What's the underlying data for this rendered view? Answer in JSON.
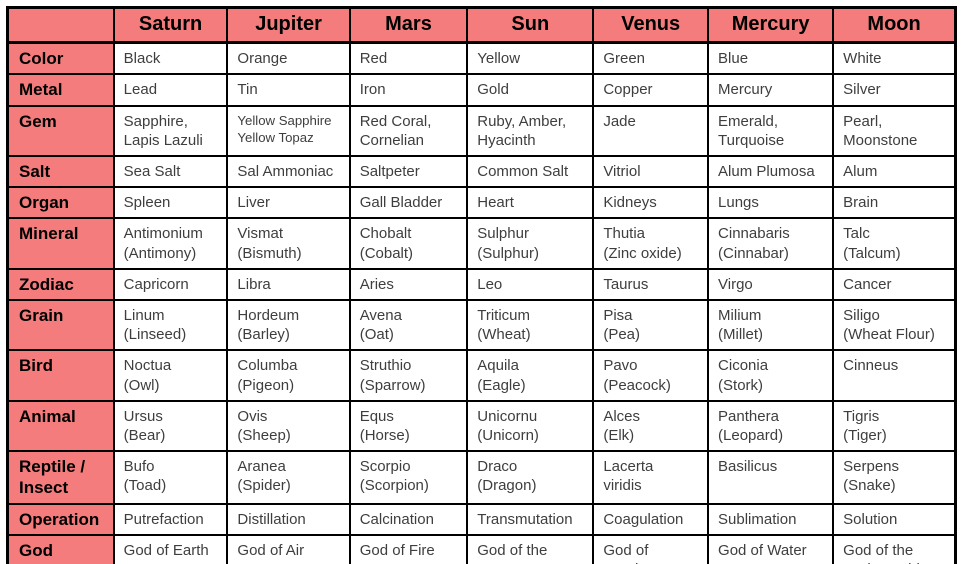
{
  "colors": {
    "header_bg": "#f47c7c",
    "border_color": "#000000",
    "cell_text": "#3e3e3e",
    "label_text": "#000000",
    "table_bg": "#ffffff"
  },
  "table": {
    "corner_label": "",
    "columns": [
      "Saturn",
      "Jupiter",
      "Mars",
      "Sun",
      "Venus",
      "Mercury",
      "Moon"
    ],
    "rows": [
      {
        "label": "Color",
        "lines": 1,
        "values": [
          "Black",
          "Orange",
          "Red",
          "Yellow",
          "Green",
          "Blue",
          "White"
        ]
      },
      {
        "label": "Metal",
        "lines": 1,
        "values": [
          "Lead",
          "Tin",
          "Iron",
          "Gold",
          "Copper",
          "Mercury",
          "Silver"
        ]
      },
      {
        "label": "Gem",
        "lines": 2,
        "values": [
          "Sapphire,\nLapis Lazuli",
          {
            "text": "Yellow Sapphire\nYellow Topaz",
            "small": true
          },
          "Red Coral,\nCornelian",
          "Ruby, Amber,\nHyacinth",
          "Jade",
          "Emerald,\nTurquoise",
          "Pearl,\nMoonstone"
        ]
      },
      {
        "label": "Salt",
        "lines": 1,
        "values": [
          "Sea Salt",
          "Sal Ammoniac",
          "Saltpeter",
          "Common Salt",
          "Vitriol",
          "Alum Plumosa",
          "Alum"
        ]
      },
      {
        "label": "Organ",
        "lines": 1,
        "values": [
          "Spleen",
          "Liver",
          "Gall Bladder",
          "Heart",
          "Kidneys",
          "Lungs",
          "Brain"
        ]
      },
      {
        "label": "Mineral",
        "lines": 2,
        "values": [
          "Antimonium\n(Antimony)",
          "Vismat\n(Bismuth)",
          "Chobalt\n(Cobalt)",
          "Sulphur\n(Sulphur)",
          "Thutia\n(Zinc oxide)",
          "Cinnabaris\n(Cinnabar)",
          "Talc\n(Talcum)"
        ]
      },
      {
        "label": "Zodiac",
        "lines": 1,
        "values": [
          "Capricorn",
          "Libra",
          "Aries",
          "Leo",
          "Taurus",
          "Virgo",
          "Cancer"
        ]
      },
      {
        "label": "Grain",
        "lines": 2,
        "values": [
          "Linum\n(Linseed)",
          "Hordeum\n(Barley)",
          "Avena\n(Oat)",
          "Triticum\n(Wheat)",
          "Pisa\n(Pea)",
          "Milium\n(Millet)",
          "Siligo\n(Wheat Flour)"
        ]
      },
      {
        "label": "Bird",
        "lines": 2,
        "values": [
          "Noctua\n(Owl)",
          "Columba\n(Pigeon)",
          "Struthio\n(Sparrow)",
          "Aquila\n(Eagle)",
          "Pavo\n(Peacock)",
          "Ciconia\n(Stork)",
          "Cinneus"
        ]
      },
      {
        "label": "Animal",
        "lines": 2,
        "values": [
          "Ursus\n(Bear)",
          "Ovis\n(Sheep)",
          "Equs\n(Horse)",
          "Unicornu\n(Unicorn)",
          "Alces\n(Elk)",
          "Panthera\n(Leopard)",
          "Tigris\n(Tiger)"
        ]
      },
      {
        "label": "Reptile /\nInsect",
        "lines": 2,
        "values": [
          "Bufo\n(Toad)",
          "Aranea\n(Spider)",
          "Scorpio\n(Scorpion)",
          "Draco\n(Dragon)",
          "Lacerta\nviridis",
          "Basilicus",
          "Serpens\n(Snake)"
        ]
      },
      {
        "label": "Operation",
        "lines": 1,
        "values": [
          "Putrefaction",
          "Distillation",
          "Calcination",
          "Transmutation",
          "Coagulation",
          "Sublimation",
          "Solution"
        ]
      },
      {
        "label": "God",
        "lines": 2,
        "values": [
          "God of Earth",
          "God of Air",
          "God of Fire",
          "God of the\nHeavens",
          "God of\nDeath",
          "God of Water",
          "God of the\nUnderworld"
        ]
      }
    ]
  }
}
